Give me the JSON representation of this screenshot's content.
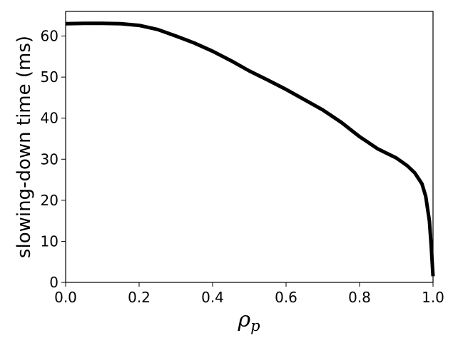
{
  "chart_data": {
    "type": "line",
    "title": "",
    "xlabel": "ρp",
    "xlabel_parts": {
      "main": "ρ",
      "sub": "p"
    },
    "ylabel": "slowing-down time (ms)",
    "xlim": [
      0.0,
      1.0
    ],
    "ylim": [
      0,
      66
    ],
    "xticks": [
      0.0,
      0.2,
      0.4,
      0.6,
      0.8,
      1.0
    ],
    "xtick_labels": [
      "0.0",
      "0.2",
      "0.4",
      "0.6",
      "0.8",
      "1.0"
    ],
    "yticks": [
      0,
      10,
      20,
      30,
      40,
      50,
      60
    ],
    "ytick_labels": [
      "0",
      "10",
      "20",
      "30",
      "40",
      "50",
      "60"
    ],
    "grid": false,
    "legend": "none",
    "series": [
      {
        "color": "#000000",
        "x": [
          0.0,
          0.05,
          0.1,
          0.15,
          0.2,
          0.25,
          0.3,
          0.35,
          0.4,
          0.45,
          0.5,
          0.55,
          0.6,
          0.65,
          0.7,
          0.75,
          0.8,
          0.85,
          0.9,
          0.93,
          0.95,
          0.97,
          0.98,
          0.99,
          0.995,
          1.0
        ],
        "y": [
          63.0,
          63.1,
          63.1,
          63.0,
          62.6,
          61.6,
          60.0,
          58.3,
          56.3,
          54.0,
          51.5,
          49.3,
          47.0,
          44.5,
          42.0,
          39.0,
          35.5,
          32.5,
          30.3,
          28.4,
          26.7,
          24.0,
          21.0,
          15.0,
          9.0,
          1.5
        ]
      }
    ]
  }
}
